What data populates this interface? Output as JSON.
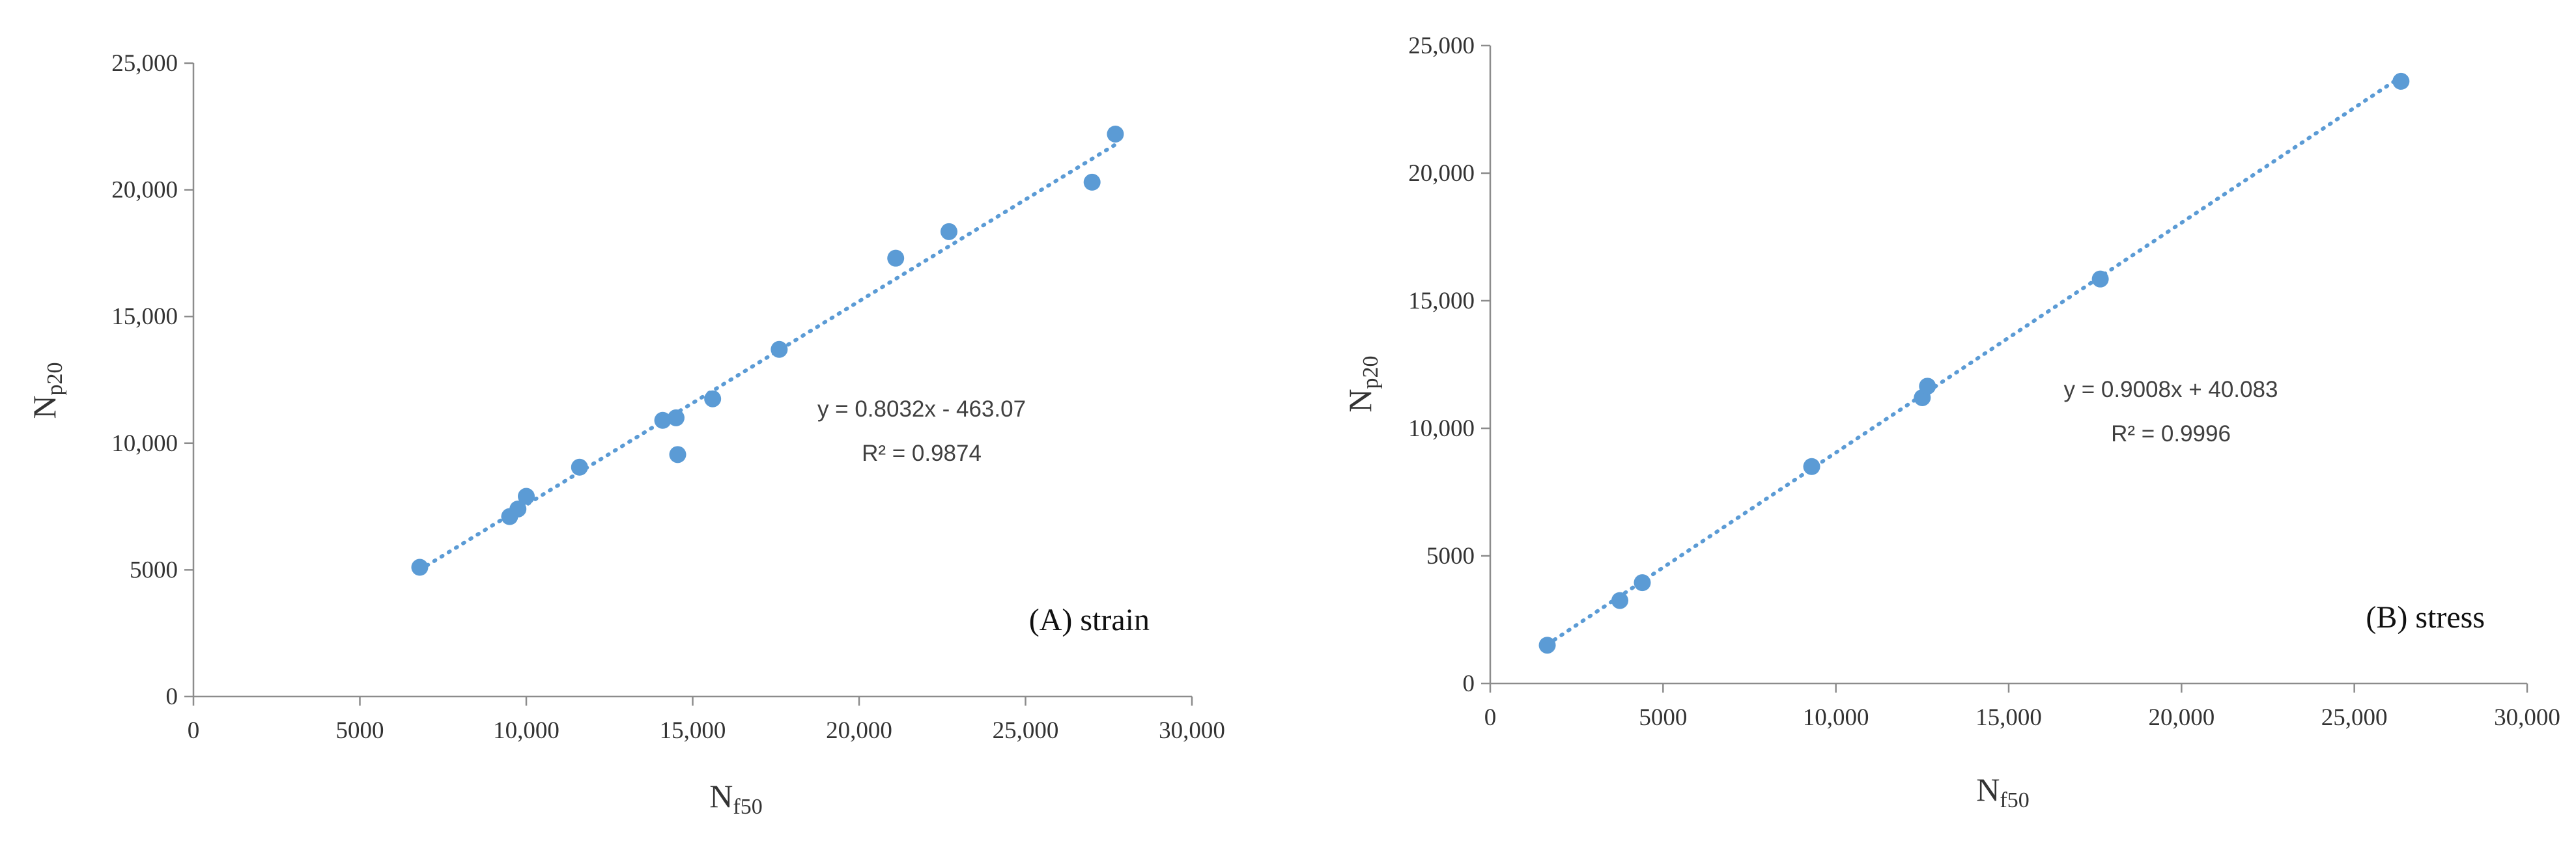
{
  "colors": {
    "marker": "#5b9bd5",
    "trend": "#5b9bd5",
    "axis": "#8c8c8c"
  },
  "chart_data": [
    {
      "type": "scatter",
      "panel_label": "(A) strain",
      "xlabel": {
        "main": "N",
        "sub": "f50"
      },
      "ylabel": {
        "main": "N",
        "sub": "p20"
      },
      "xlim": [
        0,
        30000
      ],
      "ylim": [
        0,
        25000
      ],
      "x_ticks": [
        0,
        5000,
        10000,
        15000,
        20000,
        25000,
        30000
      ],
      "x_tick_labels": [
        "0",
        "5000",
        "10,000",
        "15,000",
        "20,000",
        "25,000",
        "30,000"
      ],
      "y_ticks": [
        0,
        5000,
        10000,
        15000,
        20000,
        25000
      ],
      "y_tick_labels": [
        "0",
        "5000",
        "10,000",
        "15,000",
        "20,000",
        "25,000"
      ],
      "series": [
        {
          "name": "strain",
          "points": [
            [
              6800,
              5100
            ],
            [
              9500,
              7100
            ],
            [
              9750,
              7400
            ],
            [
              10000,
              7900
            ],
            [
              11600,
              9050
            ],
            [
              14100,
              10900
            ],
            [
              14500,
              11000
            ],
            [
              14550,
              9550
            ],
            [
              15600,
              11750
            ],
            [
              17600,
              13700
            ],
            [
              21100,
              17300
            ],
            [
              22700,
              18350
            ],
            [
              27000,
              20300
            ],
            [
              27700,
              22200
            ]
          ]
        }
      ],
      "trendline": {
        "slope": 0.8032,
        "intercept": -463.07,
        "x_range": [
          6800,
          27700
        ]
      },
      "equation": "y = 0.8032x - 463.07",
      "r_squared": "R² = 0.9874"
    },
    {
      "type": "scatter",
      "panel_label": "(B) stress",
      "xlabel": {
        "main": "N",
        "sub": "f50"
      },
      "ylabel": {
        "main": "N",
        "sub": "p20"
      },
      "xlim": [
        0,
        30000
      ],
      "ylim": [
        0,
        25000
      ],
      "x_ticks": [
        0,
        5000,
        10000,
        15000,
        20000,
        25000,
        30000
      ],
      "x_tick_labels": [
        "0",
        "5000",
        "10,000",
        "15,000",
        "20,000",
        "25,000",
        "30,000"
      ],
      "y_ticks": [
        0,
        5000,
        10000,
        15000,
        20000,
        25000
      ],
      "y_tick_labels": [
        "0",
        "5000",
        "10,000",
        "15,000",
        "20,000",
        "25,000"
      ],
      "series": [
        {
          "name": "stress",
          "points": [
            [
              1650,
              1500
            ],
            [
              3750,
              3250
            ],
            [
              4400,
              3950
            ],
            [
              9300,
              8500
            ],
            [
              12500,
              11200
            ],
            [
              12650,
              11650
            ],
            [
              17650,
              15850
            ],
            [
              26350,
              23600
            ]
          ]
        }
      ],
      "trendline": {
        "slope": 0.9008,
        "intercept": 40.083,
        "x_range": [
          1650,
          26350
        ]
      },
      "equation": "y = 0.9008x + 40.083",
      "r_squared": "R² = 0.9996"
    }
  ]
}
